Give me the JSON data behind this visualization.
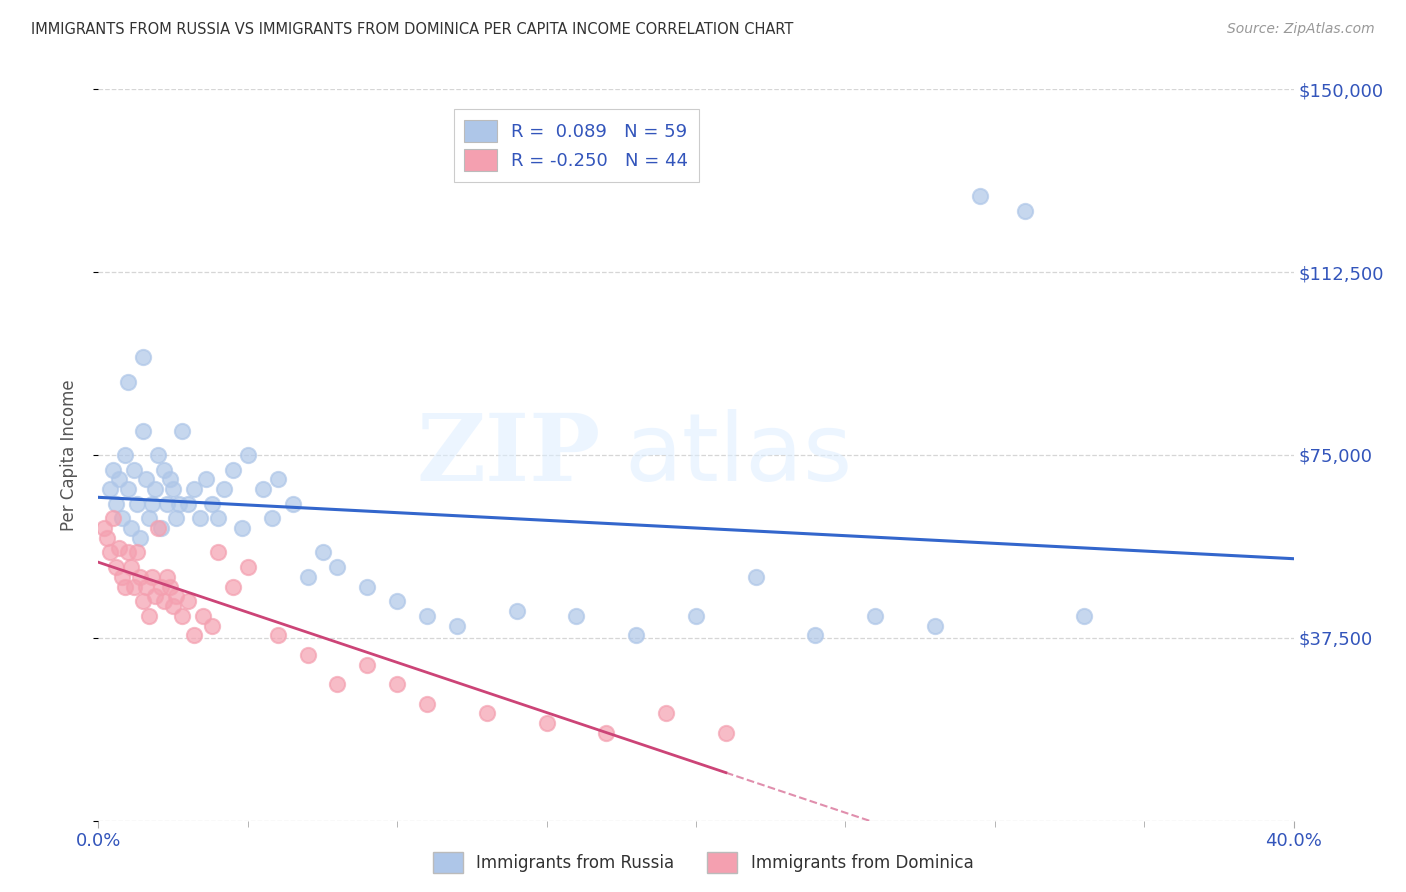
{
  "title": "IMMIGRANTS FROM RUSSIA VS IMMIGRANTS FROM DOMINICA PER CAPITA INCOME CORRELATION CHART",
  "source": "Source: ZipAtlas.com",
  "ylabel": "Per Capita Income",
  "yticks": [
    0,
    37500,
    75000,
    112500,
    150000
  ],
  "ytick_labels": [
    "",
    "$37,500",
    "$75,000",
    "$112,500",
    "$150,000"
  ],
  "xlim": [
    0.0,
    0.4
  ],
  "ylim": [
    0,
    150000
  ],
  "russia_R": 0.089,
  "russia_N": 59,
  "dominica_R": -0.25,
  "dominica_N": 44,
  "russia_color": "#aec6e8",
  "dominica_color": "#f4a0b0",
  "russia_line_color": "#3366cc",
  "dominica_line_color": "#cc4477",
  "watermark_zip": "ZIP",
  "watermark_atlas": "atlas",
  "background_color": "#ffffff",
  "title_color": "#333333",
  "axis_color": "#3355bb",
  "russia_scatter_x": [
    0.004,
    0.005,
    0.006,
    0.007,
    0.008,
    0.009,
    0.01,
    0.011,
    0.012,
    0.013,
    0.014,
    0.015,
    0.016,
    0.017,
    0.018,
    0.019,
    0.02,
    0.021,
    0.022,
    0.023,
    0.024,
    0.025,
    0.026,
    0.027,
    0.028,
    0.03,
    0.032,
    0.034,
    0.036,
    0.038,
    0.04,
    0.042,
    0.045,
    0.048,
    0.05,
    0.055,
    0.058,
    0.06,
    0.065,
    0.07,
    0.075,
    0.08,
    0.09,
    0.1,
    0.11,
    0.12,
    0.14,
    0.16,
    0.18,
    0.2,
    0.22,
    0.24,
    0.26,
    0.28,
    0.295,
    0.31,
    0.33,
    0.01,
    0.015
  ],
  "russia_scatter_y": [
    68000,
    72000,
    65000,
    70000,
    62000,
    75000,
    68000,
    60000,
    72000,
    65000,
    58000,
    80000,
    70000,
    62000,
    65000,
    68000,
    75000,
    60000,
    72000,
    65000,
    70000,
    68000,
    62000,
    65000,
    80000,
    65000,
    68000,
    62000,
    70000,
    65000,
    62000,
    68000,
    72000,
    60000,
    75000,
    68000,
    62000,
    70000,
    65000,
    50000,
    55000,
    52000,
    48000,
    45000,
    42000,
    40000,
    43000,
    42000,
    38000,
    42000,
    50000,
    38000,
    42000,
    40000,
    128000,
    125000,
    42000,
    90000,
    95000
  ],
  "dominica_scatter_x": [
    0.002,
    0.003,
    0.004,
    0.005,
    0.006,
    0.007,
    0.008,
    0.009,
    0.01,
    0.011,
    0.012,
    0.013,
    0.014,
    0.015,
    0.016,
    0.017,
    0.018,
    0.019,
    0.02,
    0.021,
    0.022,
    0.023,
    0.024,
    0.025,
    0.026,
    0.028,
    0.03,
    0.032,
    0.035,
    0.038,
    0.04,
    0.045,
    0.05,
    0.06,
    0.07,
    0.08,
    0.09,
    0.1,
    0.11,
    0.13,
    0.15,
    0.17,
    0.19,
    0.21
  ],
  "dominica_scatter_y": [
    60000,
    58000,
    55000,
    62000,
    52000,
    56000,
    50000,
    48000,
    55000,
    52000,
    48000,
    55000,
    50000,
    45000,
    48000,
    42000,
    50000,
    46000,
    60000,
    48000,
    45000,
    50000,
    48000,
    44000,
    46000,
    42000,
    45000,
    38000,
    42000,
    40000,
    55000,
    48000,
    52000,
    38000,
    34000,
    28000,
    32000,
    28000,
    24000,
    22000,
    20000,
    18000,
    22000,
    18000
  ]
}
